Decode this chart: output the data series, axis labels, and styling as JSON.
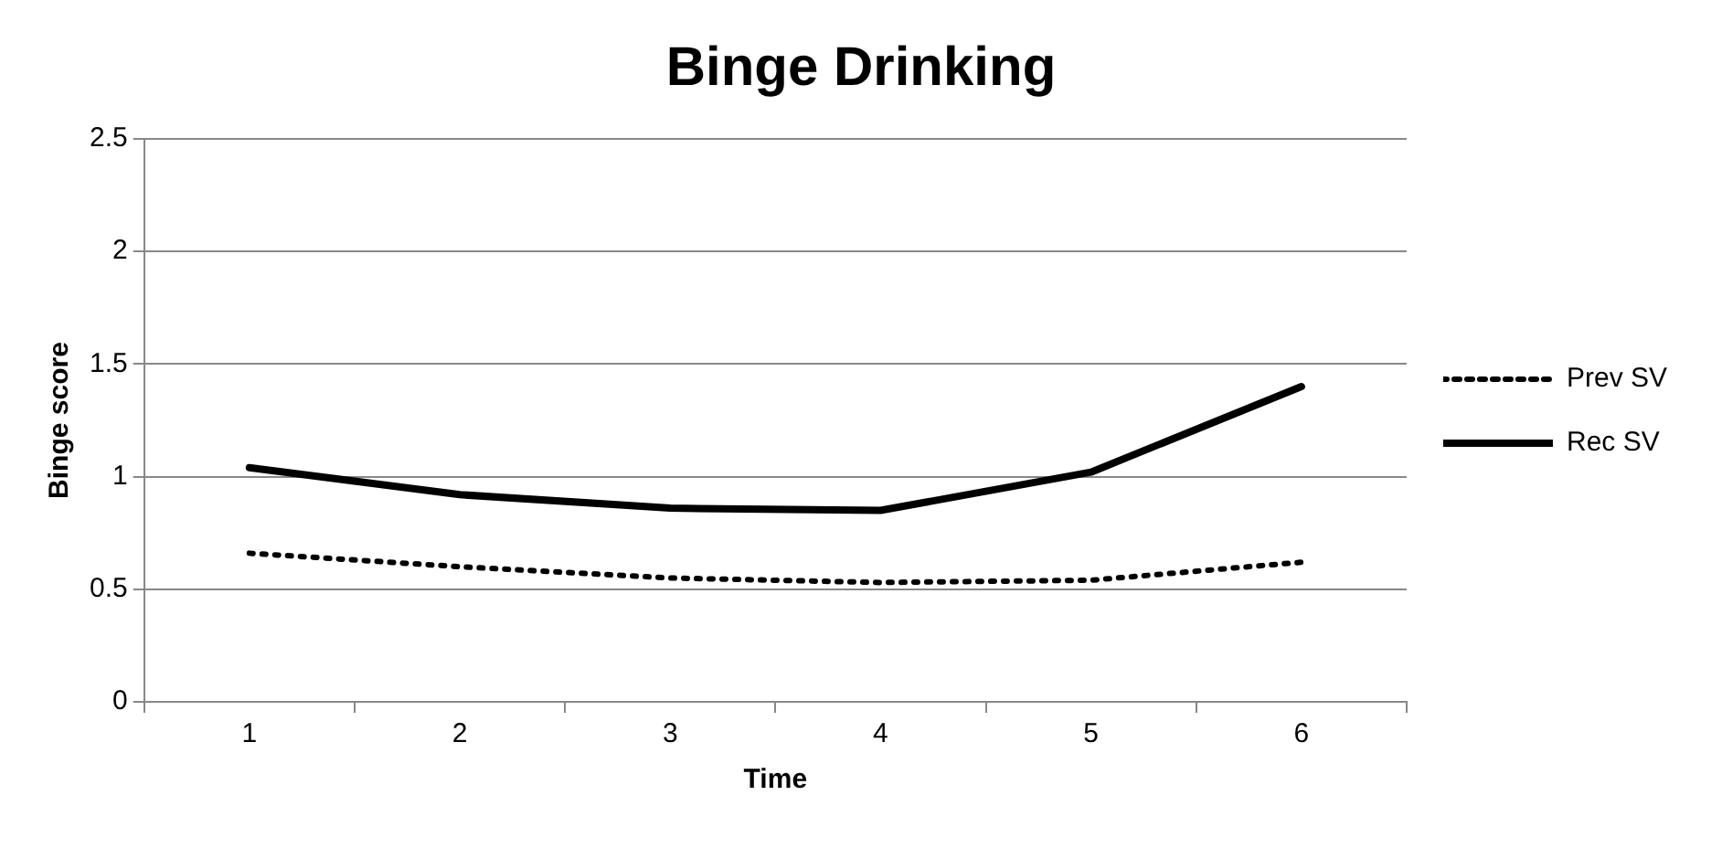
{
  "chart_data": {
    "type": "line",
    "title": "Binge Drinking",
    "xlabel": "Time",
    "ylabel": "Binge score",
    "categories": [
      "1",
      "2",
      "3",
      "4",
      "5",
      "6"
    ],
    "series": [
      {
        "name": "Prev SV",
        "color": "#000000",
        "line_style": "dotted",
        "values": [
          0.66,
          0.6,
          0.55,
          0.53,
          0.54,
          0.62
        ]
      },
      {
        "name": "Rec SV",
        "color": "#000000",
        "line_style": "solid",
        "values": [
          1.04,
          0.92,
          0.86,
          0.85,
          1.02,
          1.4
        ]
      }
    ],
    "ylim": [
      0,
      2.5
    ],
    "yticks": [
      0,
      0.5,
      1,
      1.5,
      2,
      2.5
    ],
    "grid": "y",
    "legend": "right",
    "marker": "none"
  }
}
